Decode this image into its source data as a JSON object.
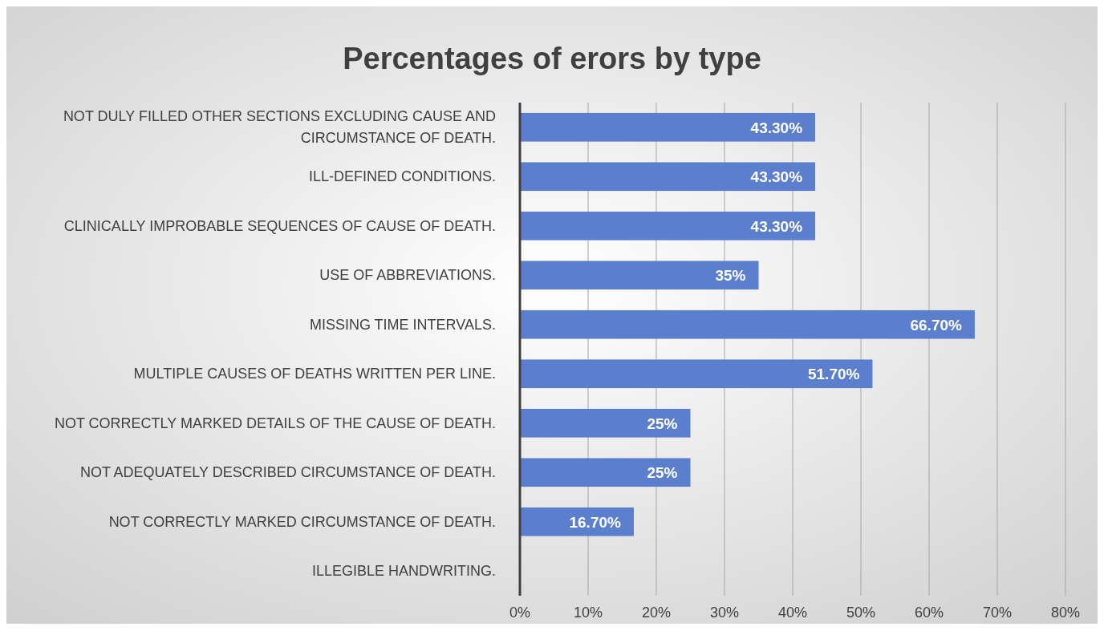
{
  "chart_data": {
    "type": "bar",
    "orientation": "horizontal",
    "title": "Percentages of erors by type",
    "categories": [
      "NOT DULY FILLED OTHER SECTIONS EXCLUDING CAUSE AND CIRCUMSTANCE OF DEATH.",
      "ILL-DEFINED CONDITIONS.",
      "CLINICALLY IMPROBABLE SEQUENCES OF CAUSE OF DEATH.",
      "USE OF ABBREVIATIONS.",
      "MISSING TIME INTERVALS.",
      "MULTIPLE CAUSES OF DEATHS WRITTEN PER LINE.",
      "NOT CORRECTLY MARKED DETAILS OF THE CAUSE OF DEATH.",
      "NOT ADEQUATELY DESCRIBED CIRCUMSTANCE OF DEATH.",
      "NOT CORRECTLY MARKED CIRCUMSTANCE OF DEATH.",
      "ILLEGIBLE HANDWRITING."
    ],
    "values": [
      43.3,
      43.3,
      43.3,
      35,
      66.7,
      51.7,
      25,
      25,
      16.7,
      0
    ],
    "value_labels": [
      "43.30%",
      "43.30%",
      "43.30%",
      "35%",
      "66.70%",
      "51.70%",
      "25%",
      "25%",
      "16.70%",
      null
    ],
    "color": "#5b7fcc",
    "xlim": [
      0,
      80
    ],
    "xticks": [
      {
        "value": 0,
        "label": "0%"
      },
      {
        "value": 10,
        "label": "10%"
      },
      {
        "value": 20,
        "label": "20%"
      },
      {
        "value": 30,
        "label": "30%"
      },
      {
        "value": 40,
        "label": "40%"
      },
      {
        "value": 50,
        "label": "50%"
      },
      {
        "value": 60,
        "label": "60%"
      },
      {
        "value": 70,
        "label": "70%"
      },
      {
        "value": 80,
        "label": "80%"
      }
    ],
    "grid": "x"
  }
}
